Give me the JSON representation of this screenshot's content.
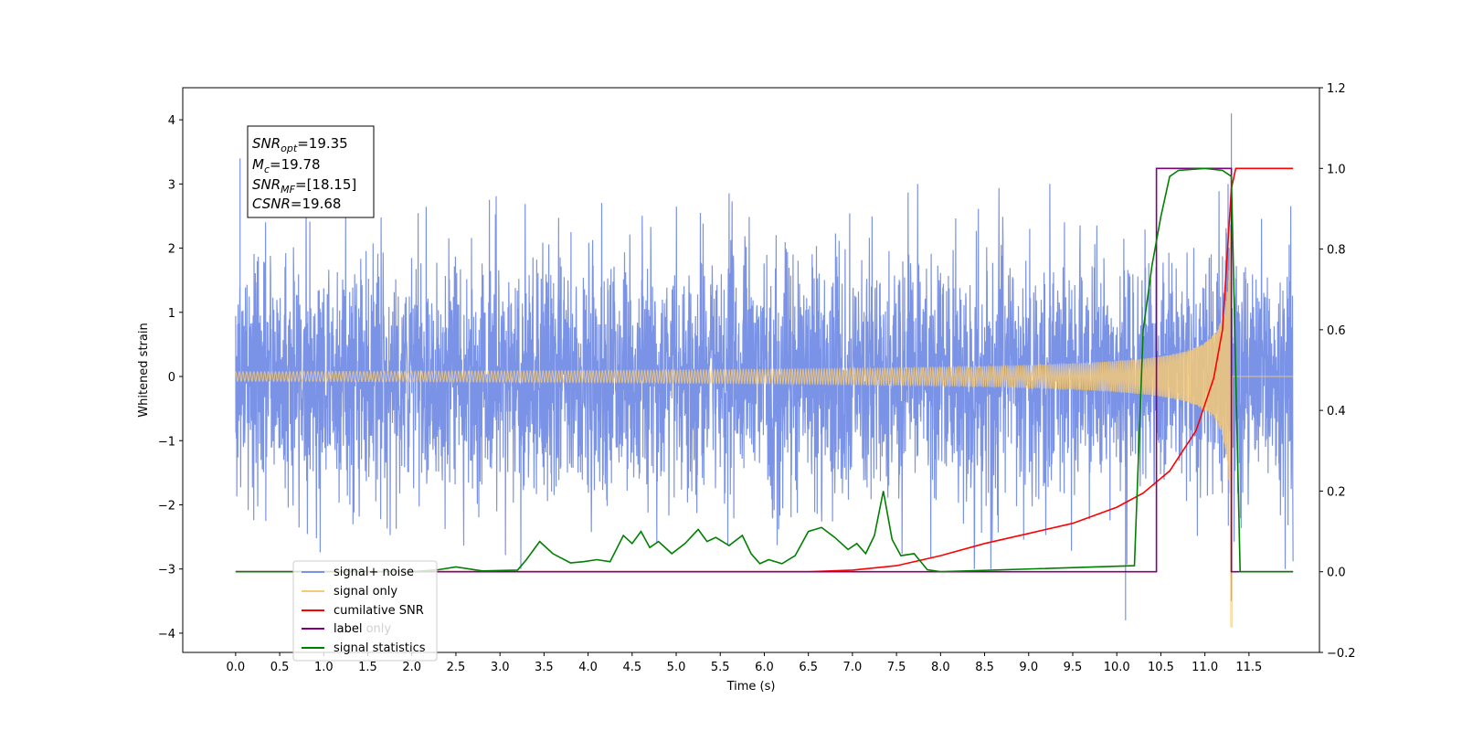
{
  "chart_data": {
    "type": "line",
    "xlabel": "Time (s)",
    "ylabel": "Whitened strain",
    "xlim": [
      -0.6,
      12.3
    ],
    "ylim": [
      -4.3,
      4.5
    ],
    "y2lim": [
      -0.2,
      1.2
    ],
    "x_ticks": [
      "0.0",
      "0.5",
      "1.0",
      "1.5",
      "2.0",
      "2.5",
      "3.0",
      "3.5",
      "4.0",
      "4.5",
      "5.0",
      "5.5",
      "6.0",
      "6.5",
      "7.0",
      "7.5",
      "8.0",
      "8.5",
      "9.0",
      "9.5",
      "10.0",
      "10.5",
      "11.0",
      "11.5"
    ],
    "y_ticks": [
      "4",
      "3",
      "2",
      "1",
      "0",
      "−1",
      "−2",
      "−3",
      "−4"
    ],
    "y2_ticks": [
      "1.2",
      "1.0",
      "0.8",
      "0.6",
      "0.4",
      "0.2",
      "0.0",
      "−0.2"
    ],
    "stats_box": {
      "snr_opt": {
        "base": "SNR",
        "sub": "opt",
        "value": "=19.35"
      },
      "mc": {
        "base": "M",
        "sub": "c",
        "value": "=19.78"
      },
      "snr_mf": {
        "base": "SNR",
        "sub": "MF",
        "value": "=[18.15]"
      },
      "csnr": {
        "base": "CSNR",
        "sub": "",
        "value": "=19.68"
      }
    },
    "legend": {
      "placement": "lower-left",
      "entries": [
        "signal+ noise",
        "signal only",
        "cumilative SNR",
        "label",
        "signal statistics"
      ],
      "hidden_behind": [
        "label only"
      ]
    },
    "series": [
      {
        "name": "signal+ noise",
        "axis": "left",
        "color": "#7b93e6",
        "kind": "noisy strain",
        "x_range": [
          0.0,
          12.0
        ],
        "noise_envelope": [
          -3.0,
          3.0
        ],
        "peaks": [
          {
            "x": 0.05,
            "y": 3.4
          },
          {
            "x": 10.1,
            "y": -3.8
          },
          {
            "x": 11.3,
            "y": 4.1
          },
          {
            "x": 11.3,
            "y": -3.5
          }
        ]
      },
      {
        "name": "signal only",
        "axis": "left",
        "color": "#f5c978",
        "kind": "chirp",
        "x_range": [
          0.0,
          12.0
        ],
        "merger_time": 11.3,
        "peak_amplitude": 3.2,
        "min_value": -3.9
      },
      {
        "name": "cumilative SNR",
        "axis": "right",
        "color": "#ff0000",
        "x": [
          0.0,
          6.5,
          7.0,
          7.5,
          8.0,
          8.5,
          9.0,
          9.5,
          10.0,
          10.3,
          10.6,
          10.9,
          11.1,
          11.2,
          11.3,
          11.35,
          12.0
        ],
        "values": [
          0.0,
          0.0,
          0.004,
          0.015,
          0.04,
          0.07,
          0.095,
          0.12,
          0.16,
          0.195,
          0.25,
          0.35,
          0.48,
          0.6,
          0.95,
          1.0,
          1.0
        ]
      },
      {
        "name": "label",
        "axis": "right",
        "color": "#800080",
        "x": [
          0.0,
          10.45,
          10.45,
          11.3,
          11.3,
          12.0
        ],
        "values": [
          0.0,
          0.0,
          1.0,
          1.0,
          0.0,
          0.0
        ]
      },
      {
        "name": "signal statistics",
        "axis": "right",
        "color": "#008000",
        "x": [
          0.0,
          2.0,
          2.3,
          2.5,
          2.8,
          3.2,
          3.3,
          3.45,
          3.6,
          3.8,
          3.95,
          4.1,
          4.25,
          4.4,
          4.5,
          4.6,
          4.7,
          4.8,
          4.95,
          5.1,
          5.25,
          5.35,
          5.45,
          5.6,
          5.75,
          5.85,
          5.95,
          6.05,
          6.2,
          6.35,
          6.5,
          6.65,
          6.8,
          6.95,
          7.05,
          7.15,
          7.25,
          7.35,
          7.45,
          7.55,
          7.7,
          7.85,
          8.0,
          10.2,
          10.3,
          10.4,
          10.5,
          10.6,
          10.7,
          11.0,
          11.2,
          11.3,
          11.4,
          12.0
        ],
        "values": [
          0.0,
          0.0,
          0.005,
          0.012,
          0.002,
          0.004,
          0.03,
          0.075,
          0.045,
          0.022,
          0.025,
          0.03,
          0.025,
          0.09,
          0.07,
          0.1,
          0.06,
          0.075,
          0.045,
          0.07,
          0.105,
          0.075,
          0.085,
          0.065,
          0.09,
          0.045,
          0.02,
          0.03,
          0.02,
          0.04,
          0.1,
          0.11,
          0.085,
          0.055,
          0.07,
          0.045,
          0.09,
          0.2,
          0.08,
          0.04,
          0.045,
          0.005,
          0.0,
          0.015,
          0.6,
          0.76,
          0.88,
          0.98,
          0.995,
          1.0,
          0.995,
          0.98,
          0.0,
          0.0
        ]
      }
    ]
  }
}
